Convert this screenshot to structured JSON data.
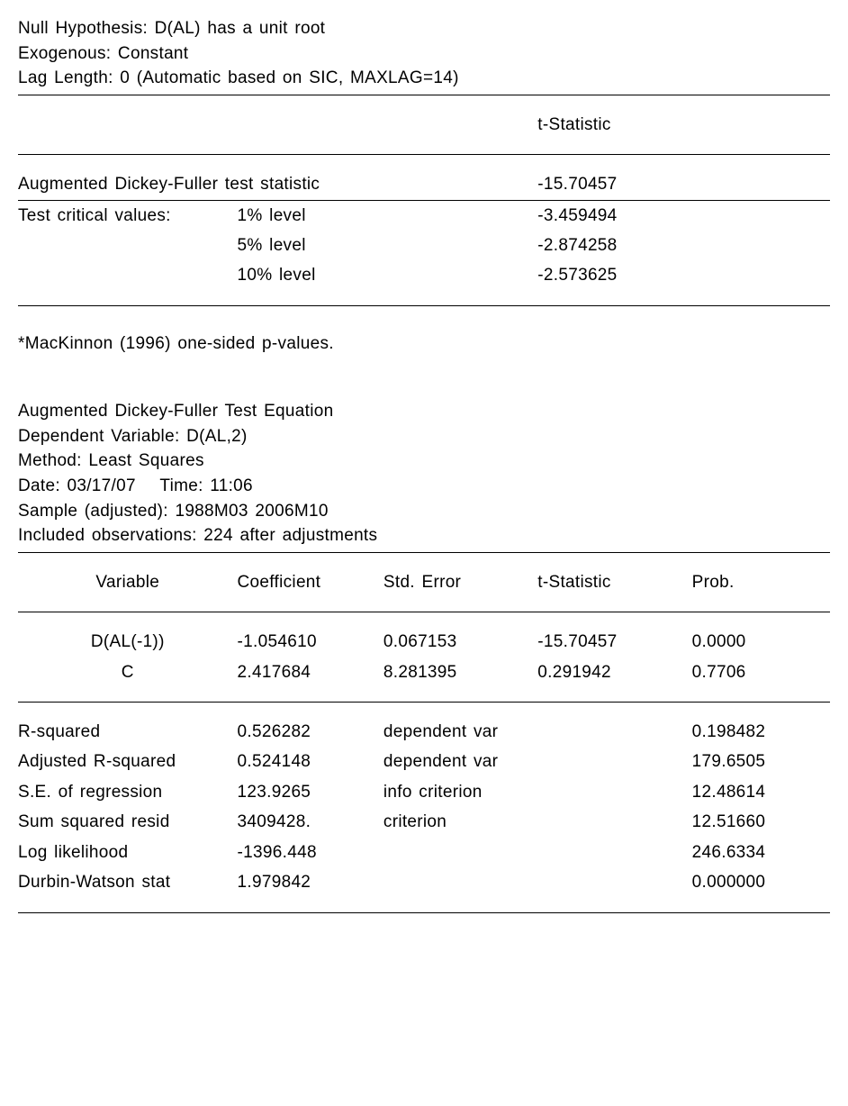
{
  "header": {
    "null_hypothesis": "Null Hypothesis: D(AL) has a unit root",
    "exogenous": "Exogenous: Constant",
    "lag_length": "Lag Length: 0 (Automatic based on SIC, MAXLAG=14)"
  },
  "tstat_header": "t-Statistic",
  "adf": {
    "label": "Augmented Dickey-Fuller test statistic",
    "value": "-15.70457",
    "crit_label": "Test critical values:",
    "levels": [
      {
        "pct": "1% level",
        "val": "-3.459494"
      },
      {
        "pct": "5% level",
        "val": "-2.874258"
      },
      {
        "pct": "10% level",
        "val": "-2.573625"
      }
    ]
  },
  "footnote": "*MacKinnon (1996) one-sided p-values.",
  "equation_header": {
    "l1": "Augmented Dickey-Fuller Test Equation",
    "l2": "Dependent Variable: D(AL,2)",
    "l3": "Method: Least Squares",
    "l4": "Date: 03/17/07  Time: 11:06",
    "l5": "Sample (adjusted): 1988M03 2006M10",
    "l6": "Included observations: 224 after adjustments"
  },
  "coef_table": {
    "headers": {
      "var": "Variable",
      "coef": "Coefficient",
      "se": "Std. Error",
      "t": "t-Statistic",
      "p": "Prob."
    },
    "rows": [
      {
        "var": "D(AL(-1))",
        "coef": "-1.054610",
        "se": "0.067153",
        "t": "-15.70457",
        "p": "0.0000"
      },
      {
        "var": "C",
        "coef": "2.417684",
        "se": "8.281395",
        "t": "0.291942",
        "p": "0.7706"
      }
    ]
  },
  "stats": {
    "rows": [
      {
        "name": "R-squared",
        "val": "0.526282",
        "mid": "dependent var",
        "right": "0.198482"
      },
      {
        "name": "Adjusted R-squared",
        "val": "0.524148",
        "mid": "dependent var",
        "right": "179.6505"
      },
      {
        "name": "S.E. of regression",
        "val": "123.9265",
        "mid": "info criterion",
        "right": "12.48614"
      },
      {
        "name": "Sum squared resid",
        "val": "3409428.",
        "mid": "criterion",
        "right": "12.51660"
      },
      {
        "name": "Log likelihood",
        "val": "-1396.448",
        "mid": "",
        "right": "246.6334"
      },
      {
        "name": "Durbin-Watson stat",
        "val": "1.979842",
        "mid": "",
        "right": "0.000000"
      }
    ]
  }
}
